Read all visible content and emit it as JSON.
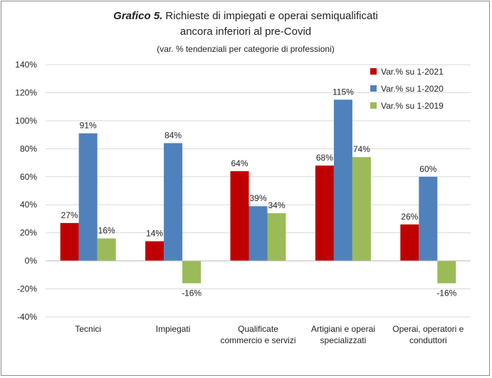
{
  "chart_data": {
    "type": "bar",
    "title_prefix": "Grafico 5.",
    "title_line1": "Richieste di impiegati e operai semiqualificati",
    "title_line2": "ancora inferiori al pre-Covid",
    "subtitle": "(var. % tendenziali per categorie di professioni)",
    "categories": [
      [
        "Tecnici"
      ],
      [
        "Impiegati"
      ],
      [
        "Qualificate",
        "commercio e servizi"
      ],
      [
        "Artigiani e operai",
        "specializzati"
      ],
      [
        "Operai, operatori e",
        "conduttori"
      ]
    ],
    "series": [
      {
        "name": "Var.% su 1-2021",
        "color": "#c00000",
        "values": [
          27,
          14,
          64,
          68,
          26
        ]
      },
      {
        "name": "Var.% su 1-2020",
        "color": "#4f81bd",
        "values": [
          91,
          84,
          39,
          115,
          60
        ]
      },
      {
        "name": "Var.% su 1-2019",
        "color": "#9bbb59",
        "values": [
          16,
          -16,
          34,
          74,
          -16
        ]
      }
    ],
    "ylim": [
      -40,
      140
    ],
    "ytick_step": 20,
    "ytick_format": "percent",
    "grid": true,
    "legend": "top-right",
    "data_labels": true
  }
}
